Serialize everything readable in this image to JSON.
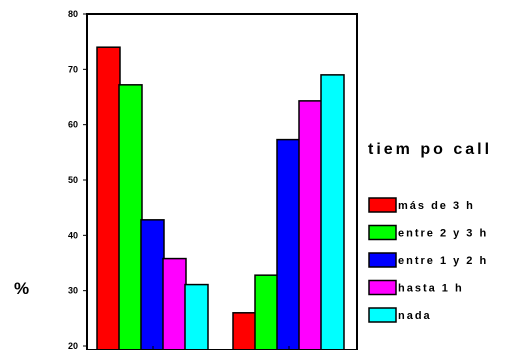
{
  "chart_data": {
    "type": "bar",
    "ylabel": "%",
    "ylim": [
      20,
      80
    ],
    "yticks": [
      20,
      30,
      40,
      50,
      60,
      70,
      80
    ],
    "categories": [
      "",
      ""
    ],
    "legend_title": "tiem po call",
    "legend_position": "right",
    "grid": false,
    "series": [
      {
        "name": "más de 3 h",
        "color": "#ff0000",
        "values": [
          74,
          26
        ]
      },
      {
        "name": "entre 2 y 3 h",
        "color": "#00ff00",
        "values": [
          67.2,
          32.8
        ]
      },
      {
        "name": "entre 1 y 2 h",
        "color": "#0000ff",
        "values": [
          42.8,
          57.3
        ]
      },
      {
        "name": "hasta 1 h",
        "color": "#ff00ff",
        "values": [
          35.8,
          64.3
        ]
      },
      {
        "name": "nada",
        "color": "#00ffff",
        "values": [
          31.1,
          69
        ]
      }
    ]
  }
}
